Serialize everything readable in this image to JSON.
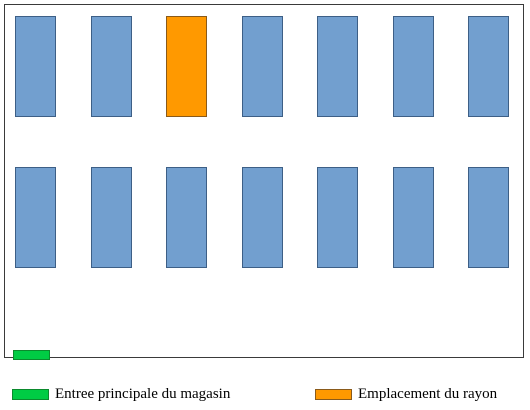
{
  "colors": {
    "shelf": "#729fcf",
    "highlighted_shelf": "#ff9900",
    "entrance": "#00cc44",
    "border": "#3a3a3a"
  },
  "layout": {
    "rows": 2,
    "shelves_per_row": 7,
    "highlighted_shelf": {
      "row": 1,
      "column": 3
    }
  },
  "legend": {
    "entrance_label": "Entree principale du magasin",
    "location_label": "Emplacement du rayon"
  }
}
